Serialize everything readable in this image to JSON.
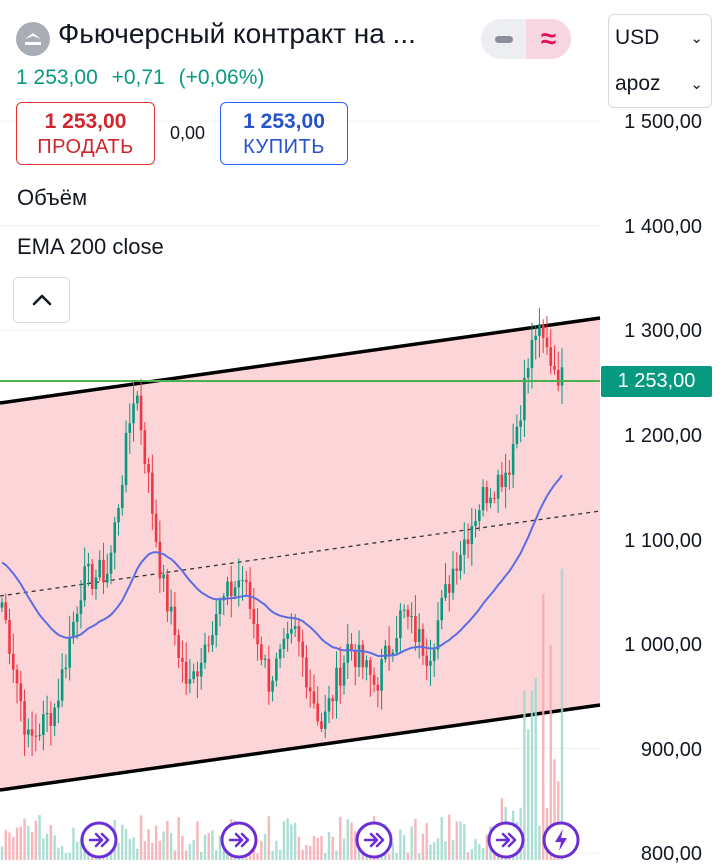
{
  "header": {
    "title": "Фьючерсный контракт на ...",
    "price": "1 253,00",
    "change": "+0,71",
    "change_pct": "(+0,06%)"
  },
  "toggle": {
    "active_icon": "approx-icon",
    "inactive_icon": "minus-icon",
    "active_glyph": "≈"
  },
  "selectors": {
    "currency": "USD",
    "account": "apoz"
  },
  "trade": {
    "sell_price": "1 253,00",
    "sell_label": "ПРОДАТЬ",
    "spread": "0,00",
    "buy_price": "1 253,00",
    "buy_label": "КУПИТЬ"
  },
  "indicators": {
    "volume": "Объём",
    "ema": "EMA 200 close"
  },
  "price_axis": {
    "labels": [
      "1 500,00",
      "1 400,00",
      "1 300,00",
      "1 200,00",
      "1 100,00",
      "1 000,00",
      "900,00",
      "800,00"
    ],
    "current": "1 253,00"
  },
  "colors": {
    "up": "#089981",
    "down": "#f23645",
    "ema": "#5b6ee1",
    "channel_fill": "#fbd5d7",
    "current_line": "#4caf50",
    "event_icon": "#6b2ed6",
    "sell": "#d0252b",
    "buy": "#2653c9"
  },
  "chart_data": {
    "type": "candlestick",
    "y_axis_ticks": [
      1500,
      1400,
      1300,
      1200,
      1100,
      1000,
      900,
      800
    ],
    "current_price": 1253,
    "ema_label": "EMA 200 close",
    "key_closes": [
      1040,
      905,
      940,
      1060,
      1070,
      1250,
      1060,
      955,
      1030,
      1065,
      965,
      1010,
      920,
      1000,
      960,
      1030,
      990,
      1080,
      1140,
      1170,
      1300,
      1253
    ],
    "channel": {
      "upper_start": 1240,
      "upper_end": 1310,
      "lower_start": 870,
      "lower_end": 940
    },
    "event_markers": [
      "forward-icon",
      "forward-icon",
      "forward-icon",
      "forward-icon",
      "lightning-icon"
    ]
  }
}
